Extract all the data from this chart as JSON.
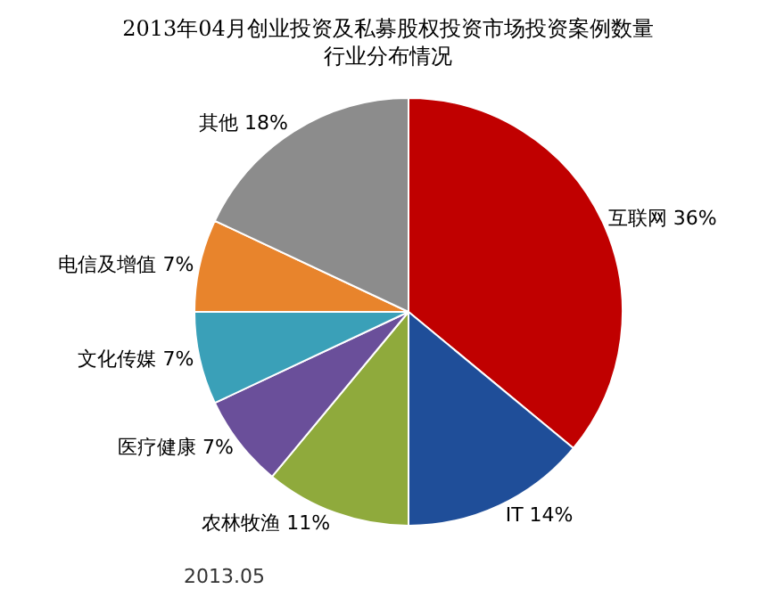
{
  "chart_data": {
    "type": "pie",
    "title": "2013年04月创业投资及私募股权投资市场投资案例数量",
    "subtitle": "行业分布情况",
    "categories": [
      "互联网",
      "IT",
      "农林牧渔",
      "医疗健康",
      "文化传媒",
      "电信及增值",
      "其他"
    ],
    "values": [
      36,
      14,
      11,
      7,
      7,
      7,
      18
    ],
    "value_labels": [
      "36%",
      "14%",
      "11%",
      "7%",
      "7%",
      "7%",
      "18%"
    ],
    "colors": [
      "#c00000",
      "#1f4e99",
      "#8faa3c",
      "#6a4f9a",
      "#3aa0b8",
      "#e8842c",
      "#8c8c8c"
    ],
    "annotations": [
      "2013.05"
    ],
    "legend": false
  }
}
